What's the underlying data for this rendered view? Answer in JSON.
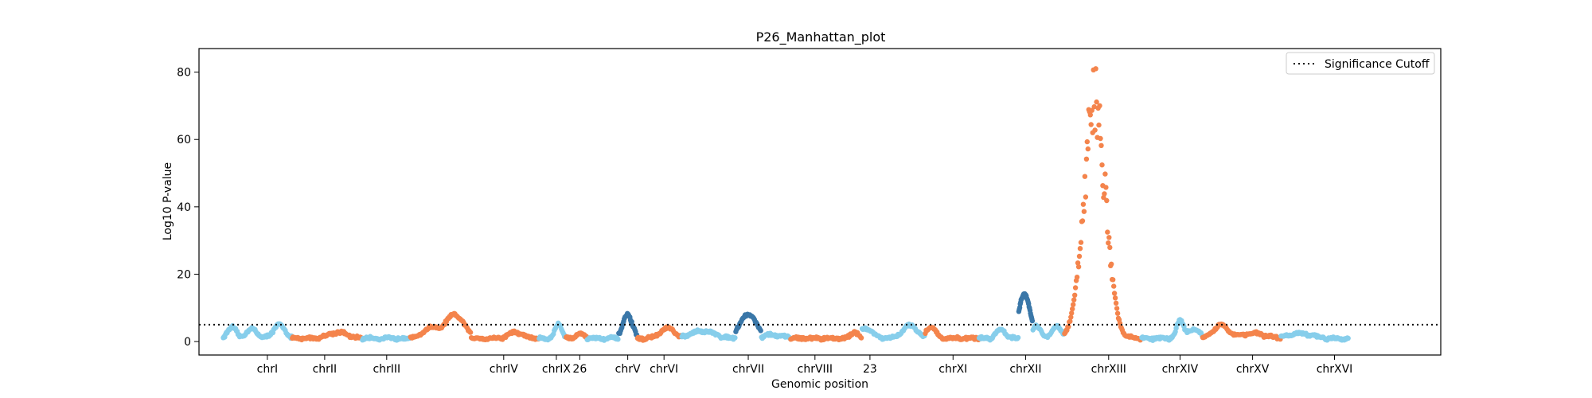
{
  "chart_data": {
    "type": "scatter",
    "title": "P26_Manhattan_plot",
    "xlabel": "Genomic position",
    "ylabel": "Log10 P-value",
    "ylim": [
      -4,
      87
    ],
    "xlim": [
      0,
      1
    ],
    "yticks": [
      0,
      20,
      40,
      60,
      80
    ],
    "grid": false,
    "legend": {
      "placement": "top-right",
      "entries": [
        "Significance Cutoff"
      ]
    },
    "significance_cutoff": 5,
    "colors": {
      "orange": "#f4844c",
      "light_blue": "#87ceeb",
      "dark_blue": "#3a77a8"
    },
    "chromosomes": [
      {
        "label": "chrI",
        "start": 0.0,
        "end": 0.059,
        "tick": 0.038,
        "color": "light_blue",
        "peaks": [
          [
            0.008,
            3.2,
            0.004
          ],
          [
            0.025,
            3.0,
            0.004
          ],
          [
            0.048,
            4.0,
            0.005
          ]
        ]
      },
      {
        "label": "chrII",
        "start": 0.059,
        "end": 0.119,
        "tick": 0.087,
        "color": "orange",
        "peaks": [
          [
            0.098,
            1.8,
            0.008
          ]
        ]
      },
      {
        "label": "chrIII",
        "start": 0.119,
        "end": 0.16,
        "tick": 0.14,
        "color": "light_blue",
        "peaks": []
      },
      {
        "label": "",
        "start": 0.16,
        "end": 0.212,
        "tick": 0.186,
        "color": "orange",
        "peaks": [
          [
            0.177,
            3.0,
            0.006
          ],
          [
            0.198,
            7.0,
            0.008
          ]
        ]
      },
      {
        "label": "chrIV",
        "start": 0.212,
        "end": 0.27,
        "tick": 0.24,
        "color": "orange",
        "peaks": [
          [
            0.25,
            1.8,
            0.006
          ]
        ]
      },
      {
        "label": "chrIX",
        "start": 0.27,
        "end": 0.293,
        "tick": 0.285,
        "color": "light_blue",
        "peaks": [
          [
            0.287,
            4.2,
            0.003
          ]
        ]
      },
      {
        "label": "26",
        "start": 0.293,
        "end": 0.311,
        "tick": 0.305,
        "color": "orange",
        "peaks": [
          [
            0.305,
            1.5,
            0.003
          ]
        ]
      },
      {
        "label": "",
        "start": 0.311,
        "end": 0.338,
        "tick": 0.324,
        "color": "light_blue",
        "peaks": []
      },
      {
        "label": "chrV",
        "start": 0.338,
        "end": 0.354,
        "tick": 0.346,
        "color": "dark_blue",
        "peaks": [
          [
            0.346,
            7.0,
            0.004
          ]
        ]
      },
      {
        "label": "chrVI",
        "start": 0.354,
        "end": 0.392,
        "tick": 0.377,
        "color": "orange",
        "peaks": [
          [
            0.38,
            3.0,
            0.006
          ]
        ]
      },
      {
        "label": "",
        "start": 0.392,
        "end": 0.438,
        "tick": 0.415,
        "color": "light_blue",
        "peaks": [
          [
            0.41,
            2.2,
            0.01
          ]
        ]
      },
      {
        "label": "chrVII",
        "start": 0.438,
        "end": 0.46,
        "tick": 0.449,
        "color": "dark_blue",
        "peaks": [
          [
            0.449,
            7.2,
            0.007
          ]
        ]
      },
      {
        "label": "",
        "start": 0.46,
        "end": 0.485,
        "tick": 0.472,
        "color": "light_blue",
        "peaks": [
          [
            0.47,
            1.0,
            0.008
          ]
        ]
      },
      {
        "label": "chrVIII",
        "start": 0.485,
        "end": 0.546,
        "tick": 0.506,
        "color": "orange",
        "peaks": [
          [
            0.54,
            2.0,
            0.003
          ]
        ]
      },
      {
        "label": "23",
        "start": 0.546,
        "end": 0.6,
        "tick": 0.553,
        "color": "light_blue",
        "peaks": [
          [
            0.549,
            3.0,
            0.006
          ],
          [
            0.587,
            3.8,
            0.006
          ]
        ]
      },
      {
        "label": "chrXI",
        "start": 0.6,
        "end": 0.646,
        "tick": 0.624,
        "color": "orange",
        "peaks": [
          [
            0.605,
            3.5,
            0.004
          ]
        ]
      },
      {
        "label": "",
        "start": 0.646,
        "end": 0.68,
        "tick": 0.663,
        "color": "light_blue",
        "peaks": [
          [
            0.665,
            2.6,
            0.004
          ]
        ]
      },
      {
        "label": "chrXII",
        "start": 0.68,
        "end": 0.692,
        "tick": 0.686,
        "color": "dark_blue",
        "peaks": [
          [
            0.685,
            13.0,
            0.005
          ]
        ]
      },
      {
        "label": "",
        "start": 0.692,
        "end": 0.719,
        "tick": 0.705,
        "color": "light_blue",
        "peaks": [
          [
            0.695,
            3.5,
            0.004
          ],
          [
            0.713,
            3.5,
            0.004
          ]
        ]
      },
      {
        "label": "chrXIII",
        "start": 0.719,
        "end": 0.785,
        "tick": 0.757,
        "color": "orange",
        "peaks": [
          [
            0.745,
            80.0,
            0.009
          ]
        ]
      },
      {
        "label": "chrXIV",
        "start": 0.785,
        "end": 0.837,
        "tick": 0.818,
        "color": "light_blue",
        "peaks": [
          [
            0.818,
            5.0,
            0.003
          ],
          [
            0.83,
            2.5,
            0.006
          ]
        ]
      },
      {
        "label": "chrXV",
        "start": 0.837,
        "end": 0.904,
        "tick": 0.88,
        "color": "orange",
        "peaks": [
          [
            0.853,
            4.0,
            0.006
          ],
          [
            0.88,
            1.5,
            0.01
          ]
        ]
      },
      {
        "label": "chrXVI",
        "start": 0.904,
        "end": 0.962,
        "tick": 0.95,
        "color": "light_blue",
        "peaks": [
          [
            0.92,
            1.4,
            0.01
          ]
        ]
      }
    ]
  }
}
